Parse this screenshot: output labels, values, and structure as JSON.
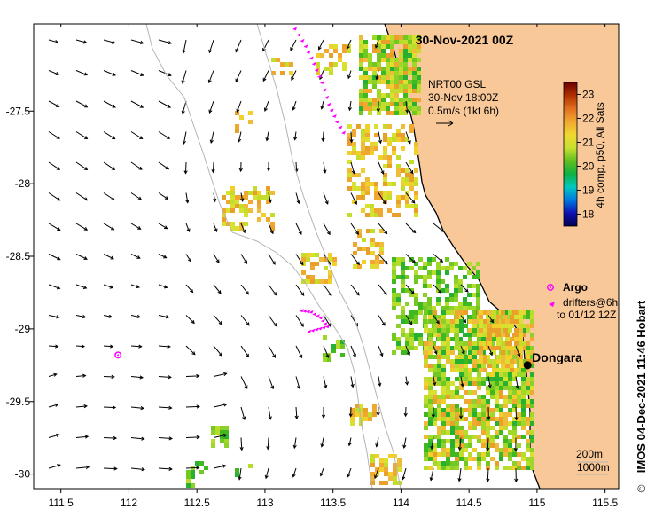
{
  "map": {
    "title": "30-Nov-2021 00Z",
    "colors": {
      "land": "#f8c898",
      "sea": "#ffffff",
      "coast": "#000000",
      "isobath": "#b4b4b4",
      "argo": "#ff00ff",
      "drifter": "#ff00ff",
      "station": "#000000"
    },
    "extent": {
      "lon": [
        111.3,
        115.6
      ],
      "lat": [
        -30.1,
        -26.9
      ]
    },
    "lon_ticks": [
      "111.5",
      "112",
      "112.5",
      "113",
      "113.5",
      "114",
      "114.5",
      "115",
      "115.5"
    ],
    "lat_ticks": [
      "-27.5",
      "-28",
      "-28.5",
      "-29",
      "-29.5",
      "-30"
    ],
    "current_note": {
      "line1": "NRT00 GSL",
      "line2": "30-Nov 18:00Z",
      "line3": "0.5m/s (1kt 6h)"
    },
    "colorbar": {
      "ticks": [
        "23",
        "22",
        "21",
        "20",
        "19",
        "18"
      ],
      "range": [
        17.5,
        23.5
      ],
      "label": "4h comp, p50, All Sats",
      "stops": [
        "#6b0000",
        "#b03000",
        "#e07020",
        "#f0a830",
        "#f0d830",
        "#c8e030",
        "#60c020",
        "#10b040",
        "#00c8c0",
        "#0078e0",
        "#1010b0",
        "#000050"
      ]
    },
    "legend": {
      "argo_label": "Argo",
      "drifter_line1": "drifters@6h",
      "drifter_line2": "to 01/12 12Z"
    },
    "station": {
      "name": "Dongara",
      "lon": 114.93,
      "lat": -29.25
    },
    "isobath_labels": {
      "shallow": "200m",
      "deep": "1000m"
    },
    "credit": "IMOS 04-Dec-2021 11:46 Hobart",
    "copyright": "©",
    "argo_floats": [
      {
        "lon": 111.92,
        "lat": -29.18
      }
    ],
    "drifter_tracks": [
      [
        [
          113.22,
          -26.93
        ],
        [
          113.3,
          -27.05
        ],
        [
          113.36,
          -27.17
        ],
        [
          113.42,
          -27.3
        ],
        [
          113.47,
          -27.45
        ],
        [
          113.53,
          -27.57
        ],
        [
          113.6,
          -27.68
        ]
      ],
      [
        [
          113.27,
          -28.87
        ],
        [
          113.34,
          -28.88
        ],
        [
          113.41,
          -28.92
        ],
        [
          113.46,
          -28.98
        ],
        [
          113.38,
          -29.0
        ],
        [
          113.3,
          -29.02
        ]
      ]
    ]
  }
}
